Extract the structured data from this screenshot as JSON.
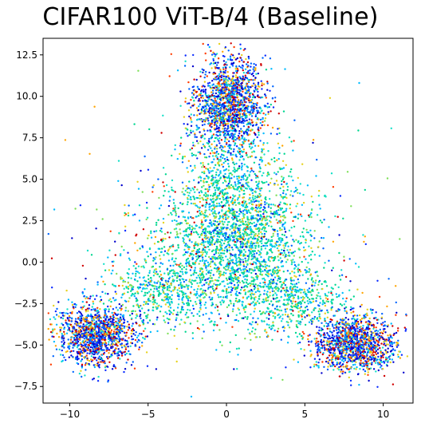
{
  "chart_data": {
    "type": "scatter",
    "title": "CIFAR100 ViT-B/4 (Baseline)",
    "xlabel": "",
    "ylabel": "",
    "xlim": [
      -11.7,
      11.9
    ],
    "ylim": [
      -8.5,
      13.5
    ],
    "xticks": [
      -10,
      -5,
      0,
      5,
      10
    ],
    "xtick_labels": [
      "−10",
      "−5",
      "0",
      "5",
      "10"
    ],
    "yticks": [
      -7.5,
      -5.0,
      -2.5,
      0.0,
      2.5,
      5.0,
      7.5,
      10.0,
      12.5
    ],
    "ytick_labels": [
      "−7.5",
      "−5.0",
      "−2.5",
      "0.0",
      "2.5",
      "5.0",
      "7.5",
      "10.0",
      "12.5"
    ],
    "grid": false,
    "legend": "none",
    "colormap": "jet",
    "point_colors": [
      "#0000cc",
      "#0a2bff",
      "#0066ff",
      "#00bbff",
      "#14e0c8",
      "#00d68f",
      "#7fe05a",
      "#e6d21e",
      "#ffa500",
      "#ff3c00",
      "#d00000"
    ],
    "clusters": [
      {
        "center": [
          0.2,
          9.6
        ],
        "spread": [
          1.1,
          1.4
        ],
        "points": 1500,
        "palette": "warm-blue"
      },
      {
        "center": [
          -8.3,
          -4.4
        ],
        "spread": [
          1.2,
          0.9
        ],
        "points": 1300,
        "palette": "warm-blue"
      },
      {
        "center": [
          8.2,
          -4.9
        ],
        "spread": [
          1.3,
          0.85
        ],
        "points": 1300,
        "palette": "warm-blue"
      },
      {
        "center": [
          0.5,
          1.0
        ],
        "spread": [
          2.3,
          2.2
        ],
        "points": 1900,
        "palette": "green-cyan"
      },
      {
        "center": [
          0.3,
          5.0
        ],
        "spread": [
          1.6,
          2.0
        ],
        "points": 500,
        "palette": "green-cyan"
      },
      {
        "center": [
          -4.5,
          -1.8
        ],
        "spread": [
          1.6,
          1.0
        ],
        "points": 450,
        "palette": "green-cyan"
      },
      {
        "center": [
          4.5,
          -2.3
        ],
        "spread": [
          1.6,
          1.0
        ],
        "points": 450,
        "palette": "green-cyan"
      },
      {
        "center": [
          0.0,
          1.5
        ],
        "spread": [
          4.2,
          3.2
        ],
        "points": 600,
        "palette": "mixed"
      }
    ]
  }
}
